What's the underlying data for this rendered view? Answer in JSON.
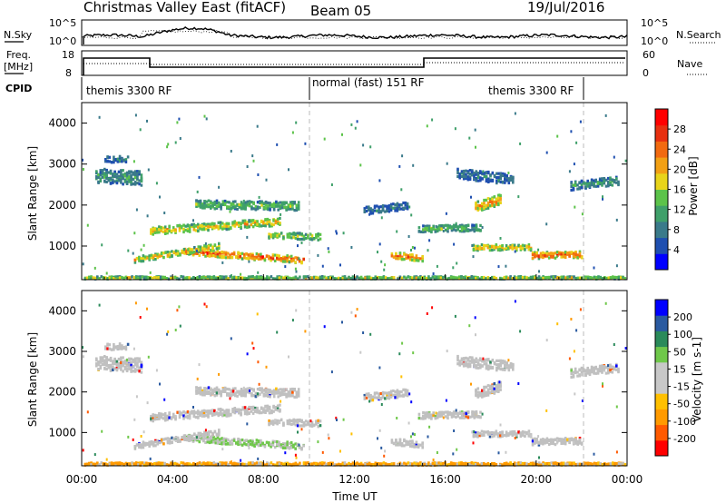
{
  "header": {
    "title": "Christmas Valley East (fitACF)",
    "beam": "Beam 05",
    "date": "19/Jul/2016"
  },
  "panels": {
    "nsky": {
      "left_label": "N.Sky",
      "right_label": "N.Search",
      "ticks_left": [
        "10^5",
        "10^0"
      ],
      "ticks_right": [
        "10^5",
        "10^0"
      ]
    },
    "freq": {
      "left_label_line1": "Freq.",
      "left_label_line2": "[MHz]",
      "right_label": "Nave",
      "ticks_left": [
        "18",
        "8"
      ],
      "ticks_right": [
        "60",
        "0"
      ]
    },
    "cpid": {
      "label": "CPID",
      "segments": [
        "themis 3300 RF",
        "normal (fast) 151 RF",
        "themis 3300 RF"
      ]
    }
  },
  "colors": {
    "power_scale": [
      "#0000ff",
      "#1f4fb0",
      "#3a7a8a",
      "#3fa06a",
      "#5cc34a",
      "#e8d41a",
      "#f2a014",
      "#f26a10",
      "#e83010",
      "#ff0000"
    ],
    "velocity_scale": [
      "#ff0000",
      "#ff5a00",
      "#ff9a00",
      "#ffc000",
      "#c8c8c8",
      "#c8c8c8",
      "#6fc84a",
      "#2a8a5a",
      "#2a5aa0",
      "#0000ff"
    ],
    "ground_scatter": "#c0c0c0"
  },
  "chart_data": [
    {
      "type": "heatmap",
      "quantity": "Power",
      "xlabel": "",
      "ylabel": "Slant Range [km]",
      "xlim": [
        0,
        24
      ],
      "ylim": [
        180,
        4500
      ],
      "yticks": [
        1000,
        2000,
        3000,
        4000
      ],
      "colorbar_label": "Power [dB]",
      "colorbar_ticks": [
        "4",
        "8",
        "12",
        "16",
        "20",
        "24",
        "28"
      ],
      "colorbar_range": [
        0,
        32
      ]
    },
    {
      "type": "heatmap",
      "quantity": "Velocity",
      "xlabel": "Time UT",
      "ylabel": "Slant Range [km]",
      "xlim": [
        0,
        24
      ],
      "ylim": [
        180,
        4500
      ],
      "xticks": [
        "00:00",
        "04:00",
        "08:00",
        "12:00",
        "16:00",
        "20:00",
        "00:00"
      ],
      "yticks": [
        1000,
        2000,
        3000,
        4000
      ],
      "colorbar_label": "Velocity [m s-1]",
      "colorbar_ticks": [
        "200",
        "100",
        "50",
        "15",
        "-15",
        "-50",
        "-100",
        "-200"
      ]
    }
  ]
}
